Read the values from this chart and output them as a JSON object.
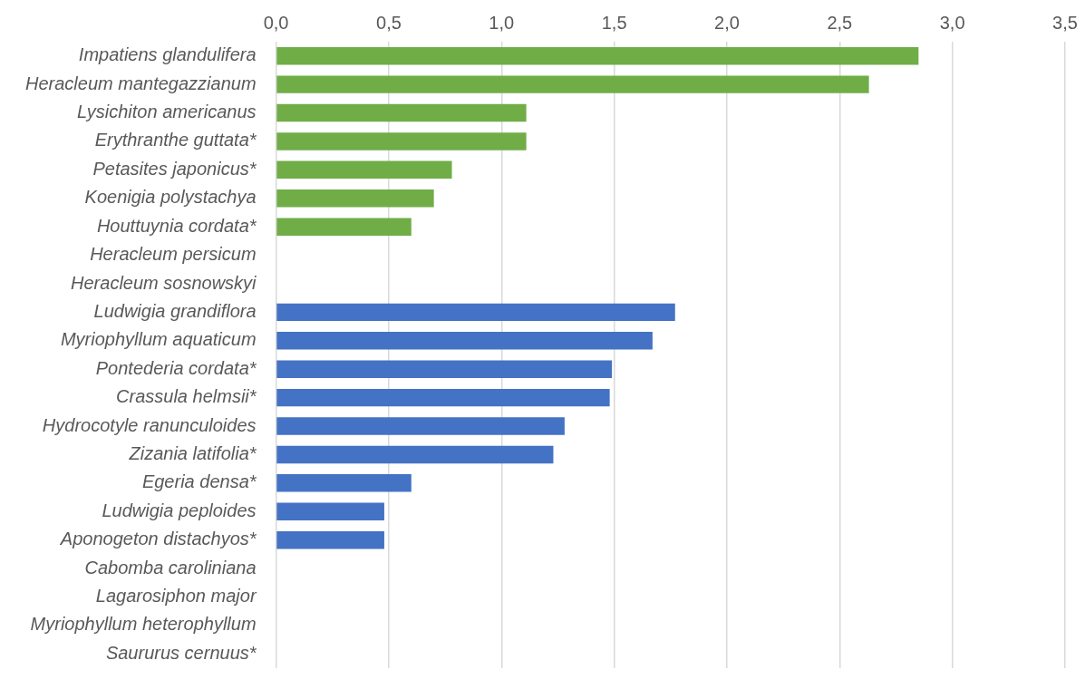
{
  "chart_data": {
    "type": "bar",
    "orientation": "horizontal",
    "categories": [
      "Impatiens glandulifera",
      "Heracleum mantegazzianum",
      "Lysichiton americanus",
      "Erythranthe guttata*",
      "Petasites japonicus*",
      "Koenigia polystachya",
      "Houttuynia cordata*",
      "Heracleum persicum",
      "Heracleum sosnowskyi",
      "Ludwigia grandiflora",
      "Myriophyllum aquaticum",
      "Pontederia cordata*",
      "Crassula helmsii*",
      "Hydrocotyle ranunculoides",
      "Zizania latifolia*",
      "Egeria densa*",
      "Ludwigia peploides",
      "Aponogeton distachyos*",
      "Cabomba caroliniana",
      "Lagarosiphon major",
      "Myriophyllum heterophyllum",
      "Saururus cernuus*"
    ],
    "values": [
      2.85,
      2.63,
      1.11,
      1.11,
      0.78,
      0.7,
      0.6,
      0,
      0,
      1.77,
      1.67,
      1.49,
      1.48,
      1.28,
      1.23,
      0.6,
      0.48,
      0.48,
      0,
      0,
      0,
      0
    ],
    "colors": [
      "#70ad47",
      "#70ad47",
      "#70ad47",
      "#70ad47",
      "#70ad47",
      "#70ad47",
      "#70ad47",
      "#70ad47",
      "#70ad47",
      "#4472c4",
      "#4472c4",
      "#4472c4",
      "#4472c4",
      "#4472c4",
      "#4472c4",
      "#4472c4",
      "#4472c4",
      "#4472c4",
      "#4472c4",
      "#4472c4",
      "#4472c4",
      "#4472c4"
    ],
    "xlim": [
      0,
      3.5
    ],
    "xticks": [
      {
        "value": 0,
        "label": "0,0"
      },
      {
        "value": 0.5,
        "label": "0,5"
      },
      {
        "value": 1,
        "label": "1,0"
      },
      {
        "value": 1.5,
        "label": "1,5"
      },
      {
        "value": 2,
        "label": "2,0"
      },
      {
        "value": 2.5,
        "label": "2,5"
      },
      {
        "value": 3,
        "label": "3,0"
      },
      {
        "value": 3.5,
        "label": "3,5"
      }
    ],
    "grid": "x"
  }
}
